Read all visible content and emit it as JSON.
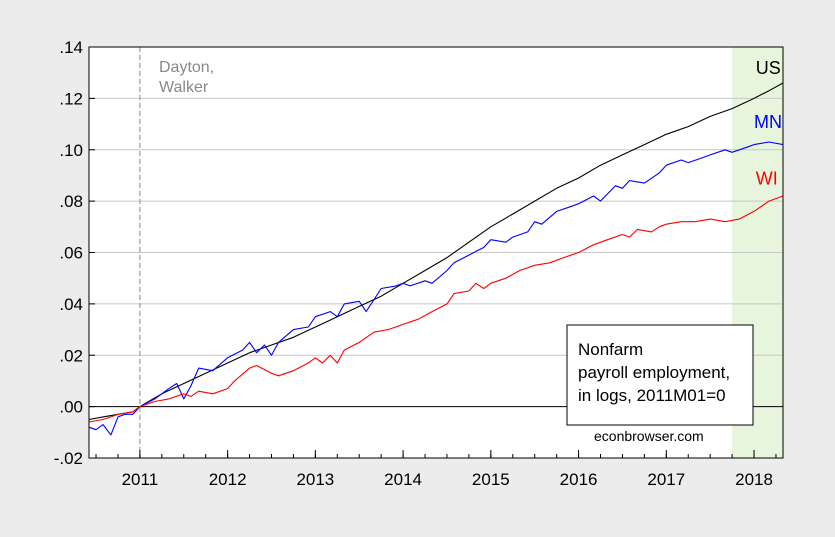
{
  "chart_data": {
    "type": "line",
    "title": "",
    "xlabel": "",
    "ylabel": "",
    "x_start": "2010-06",
    "x_end": "2018-04",
    "xlim": [
      2010.42,
      2018.33
    ],
    "ylim": [
      -0.02,
      0.14
    ],
    "grid": true,
    "x_tick_labels": [
      {
        "label": "2011",
        "value": 2011
      },
      {
        "label": "2012",
        "value": 2012
      },
      {
        "label": "2013",
        "value": 2013
      },
      {
        "label": "2014",
        "value": 2014
      },
      {
        "label": "2015",
        "value": 2015
      },
      {
        "label": "2016",
        "value": 2016
      },
      {
        "label": "2017",
        "value": 2017
      },
      {
        "label": "2018",
        "value": 2018
      }
    ],
    "y_tick_labels": [
      {
        "label": "-.02",
        "value": -0.02
      },
      {
        "label": ".00",
        "value": 0.0
      },
      {
        "label": ".02",
        "value": 0.02
      },
      {
        "label": ".04",
        "value": 0.04
      },
      {
        "label": ".06",
        "value": 0.06
      },
      {
        "label": ".08",
        "value": 0.08
      },
      {
        "label": ".10",
        "value": 0.1
      },
      {
        "label": ".12",
        "value": 0.12
      },
      {
        "label": ".14",
        "value": 0.14
      }
    ],
    "series": [
      {
        "name": "US",
        "color": "#000000",
        "points": [
          [
            2010.42,
            -0.005
          ],
          [
            2010.58,
            -0.004
          ],
          [
            2010.75,
            -0.003
          ],
          [
            2010.92,
            -0.002
          ],
          [
            2011.0,
            0.0
          ],
          [
            2011.25,
            0.005
          ],
          [
            2011.5,
            0.009
          ],
          [
            2011.75,
            0.013
          ],
          [
            2012.0,
            0.017
          ],
          [
            2012.25,
            0.021
          ],
          [
            2012.5,
            0.024
          ],
          [
            2012.75,
            0.027
          ],
          [
            2013.0,
            0.031
          ],
          [
            2013.25,
            0.035
          ],
          [
            2013.5,
            0.039
          ],
          [
            2013.75,
            0.043
          ],
          [
            2014.0,
            0.048
          ],
          [
            2014.25,
            0.053
          ],
          [
            2014.5,
            0.058
          ],
          [
            2014.75,
            0.064
          ],
          [
            2015.0,
            0.07
          ],
          [
            2015.25,
            0.075
          ],
          [
            2015.5,
            0.08
          ],
          [
            2015.75,
            0.085
          ],
          [
            2016.0,
            0.089
          ],
          [
            2016.25,
            0.094
          ],
          [
            2016.5,
            0.098
          ],
          [
            2016.75,
            0.102
          ],
          [
            2017.0,
            0.106
          ],
          [
            2017.25,
            0.109
          ],
          [
            2017.5,
            0.113
          ],
          [
            2017.75,
            0.116
          ],
          [
            2018.0,
            0.12
          ],
          [
            2018.17,
            0.123
          ],
          [
            2018.33,
            0.126
          ]
        ]
      },
      {
        "name": "MN",
        "color": "#0000ff",
        "points": [
          [
            2010.42,
            -0.008
          ],
          [
            2010.5,
            -0.009
          ],
          [
            2010.58,
            -0.007
          ],
          [
            2010.67,
            -0.011
          ],
          [
            2010.75,
            -0.004
          ],
          [
            2010.83,
            -0.003
          ],
          [
            2010.92,
            -0.003
          ],
          [
            2011.0,
            0.0
          ],
          [
            2011.17,
            0.003
          ],
          [
            2011.33,
            0.007
          ],
          [
            2011.42,
            0.009
          ],
          [
            2011.5,
            0.003
          ],
          [
            2011.58,
            0.008
          ],
          [
            2011.67,
            0.015
          ],
          [
            2011.83,
            0.014
          ],
          [
            2012.0,
            0.019
          ],
          [
            2012.17,
            0.022
          ],
          [
            2012.25,
            0.025
          ],
          [
            2012.33,
            0.021
          ],
          [
            2012.42,
            0.024
          ],
          [
            2012.5,
            0.02
          ],
          [
            2012.58,
            0.025
          ],
          [
            2012.75,
            0.03
          ],
          [
            2012.92,
            0.031
          ],
          [
            2013.0,
            0.035
          ],
          [
            2013.17,
            0.037
          ],
          [
            2013.25,
            0.035
          ],
          [
            2013.33,
            0.04
          ],
          [
            2013.5,
            0.041
          ],
          [
            2013.58,
            0.037
          ],
          [
            2013.75,
            0.046
          ],
          [
            2013.92,
            0.047
          ],
          [
            2014.0,
            0.048
          ],
          [
            2014.08,
            0.047
          ],
          [
            2014.25,
            0.049
          ],
          [
            2014.33,
            0.048
          ],
          [
            2014.5,
            0.053
          ],
          [
            2014.58,
            0.056
          ],
          [
            2014.75,
            0.059
          ],
          [
            2014.92,
            0.062
          ],
          [
            2015.0,
            0.065
          ],
          [
            2015.17,
            0.064
          ],
          [
            2015.25,
            0.066
          ],
          [
            2015.42,
            0.068
          ],
          [
            2015.5,
            0.072
          ],
          [
            2015.58,
            0.071
          ],
          [
            2015.75,
            0.076
          ],
          [
            2015.92,
            0.078
          ],
          [
            2016.0,
            0.079
          ],
          [
            2016.17,
            0.082
          ],
          [
            2016.25,
            0.08
          ],
          [
            2016.42,
            0.086
          ],
          [
            2016.5,
            0.085
          ],
          [
            2016.58,
            0.088
          ],
          [
            2016.75,
            0.087
          ],
          [
            2016.92,
            0.091
          ],
          [
            2017.0,
            0.094
          ],
          [
            2017.17,
            0.096
          ],
          [
            2017.25,
            0.095
          ],
          [
            2017.42,
            0.097
          ],
          [
            2017.5,
            0.098
          ],
          [
            2017.67,
            0.1
          ],
          [
            2017.75,
            0.099
          ],
          [
            2017.92,
            0.101
          ],
          [
            2018.0,
            0.102
          ],
          [
            2018.17,
            0.103
          ],
          [
            2018.33,
            0.102
          ]
        ]
      },
      {
        "name": "WI",
        "color": "#ff0000",
        "points": [
          [
            2010.42,
            -0.006
          ],
          [
            2010.58,
            -0.005
          ],
          [
            2010.67,
            -0.004
          ],
          [
            2010.75,
            -0.003
          ],
          [
            2010.92,
            -0.002
          ],
          [
            2011.0,
            0.0
          ],
          [
            2011.17,
            0.002
          ],
          [
            2011.33,
            0.003
          ],
          [
            2011.5,
            0.005
          ],
          [
            2011.58,
            0.004
          ],
          [
            2011.67,
            0.006
          ],
          [
            2011.83,
            0.005
          ],
          [
            2012.0,
            0.007
          ],
          [
            2012.08,
            0.01
          ],
          [
            2012.25,
            0.015
          ],
          [
            2012.33,
            0.016
          ],
          [
            2012.5,
            0.013
          ],
          [
            2012.58,
            0.012
          ],
          [
            2012.75,
            0.014
          ],
          [
            2012.92,
            0.017
          ],
          [
            2013.0,
            0.019
          ],
          [
            2013.08,
            0.017
          ],
          [
            2013.17,
            0.02
          ],
          [
            2013.25,
            0.017
          ],
          [
            2013.33,
            0.022
          ],
          [
            2013.5,
            0.025
          ],
          [
            2013.67,
            0.029
          ],
          [
            2013.83,
            0.03
          ],
          [
            2014.0,
            0.032
          ],
          [
            2014.17,
            0.034
          ],
          [
            2014.33,
            0.037
          ],
          [
            2014.5,
            0.04
          ],
          [
            2014.58,
            0.044
          ],
          [
            2014.75,
            0.045
          ],
          [
            2014.83,
            0.048
          ],
          [
            2014.92,
            0.046
          ],
          [
            2015.0,
            0.048
          ],
          [
            2015.17,
            0.05
          ],
          [
            2015.33,
            0.053
          ],
          [
            2015.5,
            0.055
          ],
          [
            2015.67,
            0.056
          ],
          [
            2015.83,
            0.058
          ],
          [
            2016.0,
            0.06
          ],
          [
            2016.17,
            0.063
          ],
          [
            2016.33,
            0.065
          ],
          [
            2016.5,
            0.067
          ],
          [
            2016.58,
            0.066
          ],
          [
            2016.67,
            0.069
          ],
          [
            2016.83,
            0.068
          ],
          [
            2016.92,
            0.07
          ],
          [
            2017.0,
            0.071
          ],
          [
            2017.17,
            0.072
          ],
          [
            2017.33,
            0.072
          ],
          [
            2017.5,
            0.073
          ],
          [
            2017.67,
            0.072
          ],
          [
            2017.83,
            0.073
          ],
          [
            2018.0,
            0.076
          ],
          [
            2018.17,
            0.08
          ],
          [
            2018.33,
            0.082
          ]
        ]
      }
    ],
    "series_labels": [
      {
        "name": "US",
        "color": "#000000",
        "x": 2018.02,
        "y": 0.1295
      },
      {
        "name": "MN",
        "color": "#0000ff",
        "x": 2018.0,
        "y": 0.1085
      },
      {
        "name": "WI",
        "color": "#ff0000",
        "x": 2018.02,
        "y": 0.0865
      }
    ],
    "shaded_region": {
      "x_start": 2017.75,
      "x_end": 2018.33,
      "color": "#e6f5dc"
    },
    "vertical_marker": {
      "x": 2011.0,
      "label_lines": [
        "Dayton,",
        "Walker"
      ]
    },
    "annotation_box": {
      "lines": [
        "Nonfarm",
        "payroll employment,",
        "in logs, 2011M01=0"
      ]
    },
    "source_text": "econbrowser.com"
  }
}
